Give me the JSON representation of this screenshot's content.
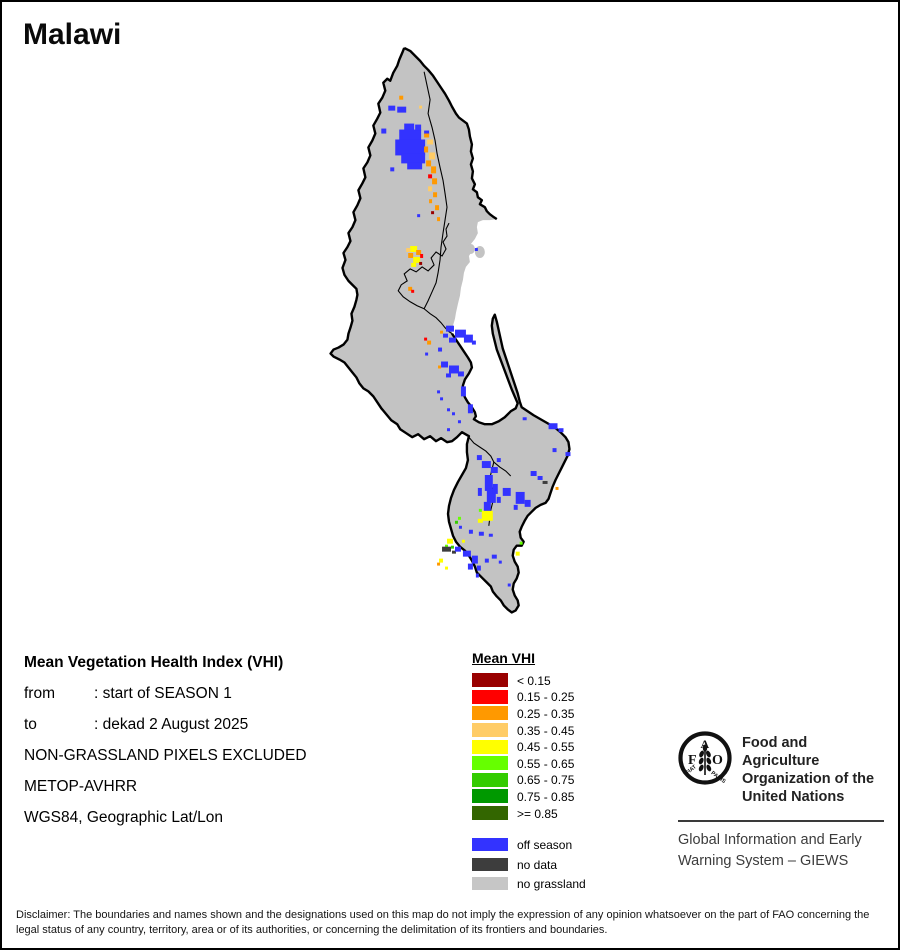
{
  "title": "Malawi",
  "info": {
    "heading": "Mean Vegetation Health Index (VHI)",
    "rows": [
      {
        "label": "from",
        "value": ": start of SEASON 1"
      },
      {
        "label": "to",
        "value": ": dekad 2 August 2025"
      },
      {
        "label": "",
        "value": "NON-GRASSLAND PIXELS EXCLUDED"
      },
      {
        "label": "",
        "value": "METOP-AVHRR"
      },
      {
        "label": "",
        "value": "WGS84, Geographic Lat/Lon"
      }
    ]
  },
  "legend": {
    "title": "Mean VHI",
    "classes": [
      {
        "color": "#990000",
        "label": "< 0.15"
      },
      {
        "color": "#FF0000",
        "label": "0.15 - 0.25"
      },
      {
        "color": "#FF9900",
        "label": "0.25 - 0.35"
      },
      {
        "color": "#FFCC66",
        "label": "0.35 - 0.45"
      },
      {
        "color": "#FFFF00",
        "label": "0.45 - 0.55"
      },
      {
        "color": "#66FF00",
        "label": "0.55 - 0.65"
      },
      {
        "color": "#33CC00",
        "label": "0.65 - 0.75"
      },
      {
        "color": "#009900",
        "label": "0.75 - 0.85"
      },
      {
        "color": "#336600",
        "label": ">= 0.85"
      }
    ],
    "extra": [
      {
        "color": "#3333FF",
        "label": "off season"
      },
      {
        "color": "#3D3D3D",
        "label": "no data"
      },
      {
        "color": "#C6C6C6",
        "label": "no grassland"
      }
    ]
  },
  "footer": {
    "fao_letters": {
      "f": "F",
      "a": "A",
      "o": "O"
    },
    "fao_motto": {
      "left": "FIAT",
      "right": "PANIS"
    },
    "org_lines": [
      "Food and Agriculture",
      "Organization of the",
      "United Nations"
    ],
    "giews_lines": [
      "Global Information and Early",
      "Warning System – GIEWS"
    ]
  },
  "disclaimer": "Disclaimer: The boundaries and names shown and the designations used on this map do not imply the expression of any opinion whatsoever on the part of FAO concerning the legal status of any country, territory, area or of its authorities, or concerning the delimitation of its frontiers and boundaries.",
  "map": {
    "land_color": "#C3C3C3",
    "border_color": "#000000",
    "palette": {
      "b": "#3333FF",
      "o": "#FF9900",
      "lo": "#FFCC66",
      "y": "#FFFF00",
      "r": "#FF0000",
      "dr": "#990000",
      "g": "#33CC00",
      "lg": "#66FF00",
      "nd": "#3D3D3D"
    },
    "patches": [
      [
        "b",
        404,
        122,
        10,
        8
      ],
      [
        "b",
        399,
        128,
        22,
        12
      ],
      [
        "b",
        395,
        138,
        30,
        16
      ],
      [
        "b",
        401,
        152,
        24,
        10
      ],
      [
        "b",
        407,
        161,
        15,
        7
      ],
      [
        "b",
        415,
        123,
        6,
        6
      ],
      [
        "b",
        424,
        129,
        5,
        4
      ],
      [
        "b",
        388,
        104,
        7,
        5
      ],
      [
        "b",
        397,
        105,
        9,
        6
      ],
      [
        "b",
        381,
        127,
        5,
        5
      ],
      [
        "b",
        390,
        166,
        4,
        4
      ],
      [
        "b",
        417,
        213,
        3,
        3
      ],
      [
        "o",
        424,
        132,
        5,
        4
      ],
      [
        "lo",
        427,
        138,
        6,
        5
      ],
      [
        "o",
        424,
        145,
        4,
        6
      ],
      [
        "lo",
        429,
        151,
        6,
        7
      ],
      [
        "o",
        426,
        159,
        5,
        6
      ],
      [
        "o",
        431,
        165,
        5,
        7
      ],
      [
        "r",
        428,
        173,
        4,
        4
      ],
      [
        "o",
        432,
        177,
        5,
        6
      ],
      [
        "lo",
        428,
        185,
        4,
        5
      ],
      [
        "o",
        433,
        191,
        4,
        5
      ],
      [
        "o",
        429,
        198,
        3,
        4
      ],
      [
        "o",
        435,
        204,
        4,
        5
      ],
      [
        "dr",
        431,
        210,
        3,
        3
      ],
      [
        "o",
        437,
        216,
        3,
        4
      ],
      [
        "o",
        399,
        94,
        4,
        4
      ],
      [
        "lo",
        419,
        104,
        3,
        3
      ],
      [
        "y",
        410,
        245,
        7,
        6
      ],
      [
        "o",
        416,
        249,
        5,
        5
      ],
      [
        "o",
        408,
        252,
        5,
        5
      ],
      [
        "y",
        413,
        256,
        7,
        6
      ],
      [
        "r",
        420,
        253,
        3,
        4
      ],
      [
        "y",
        411,
        262,
        5,
        4
      ],
      [
        "dr",
        419,
        261,
        3,
        3
      ],
      [
        "lo",
        406,
        247,
        4,
        4
      ],
      [
        "o",
        408,
        286,
        4,
        4
      ],
      [
        "r",
        411,
        289,
        3,
        3
      ],
      [
        "r",
        424,
        337,
        3,
        3
      ],
      [
        "o",
        427,
        340,
        4,
        4
      ],
      [
        "b",
        475,
        247,
        3,
        3
      ],
      [
        "b",
        446,
        325,
        8,
        6
      ],
      [
        "b",
        455,
        329,
        11,
        8
      ],
      [
        "b",
        449,
        337,
        7,
        5
      ],
      [
        "b",
        443,
        333,
        5,
        4
      ],
      [
        "b",
        464,
        334,
        9,
        8
      ],
      [
        "b",
        472,
        340,
        4,
        4
      ],
      [
        "o",
        440,
        330,
        3,
        3
      ],
      [
        "b",
        441,
        361,
        7,
        6
      ],
      [
        "b",
        449,
        365,
        10,
        8
      ],
      [
        "b",
        458,
        371,
        6,
        5
      ],
      [
        "b",
        446,
        373,
        5,
        4
      ],
      [
        "o",
        438,
        365,
        3,
        3
      ],
      [
        "b",
        461,
        386,
        5,
        10
      ],
      [
        "b",
        468,
        404,
        5,
        9
      ],
      [
        "b",
        437,
        390,
        3,
        3
      ],
      [
        "b",
        440,
        397,
        3,
        3
      ],
      [
        "b",
        447,
        408,
        3,
        3
      ],
      [
        "b",
        425,
        352,
        3,
        3
      ],
      [
        "b",
        438,
        347,
        4,
        4
      ],
      [
        "b",
        452,
        412,
        3,
        3
      ],
      [
        "b",
        458,
        420,
        3,
        3
      ],
      [
        "b",
        447,
        428,
        3,
        3
      ],
      [
        "b",
        482,
        461,
        9,
        7
      ],
      [
        "b",
        491,
        467,
        7,
        6
      ],
      [
        "b",
        477,
        455,
        5,
        5
      ],
      [
        "b",
        497,
        458,
        4,
        4
      ],
      [
        "b",
        531,
        471,
        6,
        5
      ],
      [
        "b",
        538,
        476,
        5,
        4
      ],
      [
        "b",
        549,
        423,
        9,
        6
      ],
      [
        "b",
        559,
        428,
        5,
        4
      ],
      [
        "b",
        566,
        452,
        5,
        4
      ],
      [
        "b",
        553,
        448,
        4,
        4
      ],
      [
        "b",
        523,
        417,
        4,
        3
      ],
      [
        "o",
        556,
        487,
        3,
        3
      ],
      [
        "nd",
        543,
        481,
        5,
        3
      ],
      [
        "b",
        485,
        475,
        8,
        16
      ],
      [
        "b",
        487,
        489,
        9,
        14
      ],
      [
        "b",
        484,
        502,
        7,
        10
      ],
      [
        "b",
        493,
        484,
        5,
        10
      ],
      [
        "b",
        478,
        488,
        4,
        8
      ],
      [
        "b",
        497,
        497,
        4,
        6
      ],
      [
        "b",
        503,
        488,
        8,
        8
      ],
      [
        "b",
        516,
        492,
        9,
        12
      ],
      [
        "b",
        525,
        500,
        6,
        7
      ],
      [
        "b",
        514,
        505,
        4,
        5
      ],
      [
        "y",
        482,
        511,
        11,
        10
      ],
      [
        "y",
        478,
        519,
        5,
        4
      ],
      [
        "lg",
        479,
        509,
        3,
        3
      ],
      [
        "g",
        455,
        521,
        3,
        3
      ],
      [
        "lg",
        458,
        517,
        3,
        3
      ],
      [
        "y",
        447,
        539,
        6,
        5
      ],
      [
        "lg",
        445,
        545,
        3,
        3
      ],
      [
        "g",
        451,
        546,
        3,
        3
      ],
      [
        "y",
        462,
        540,
        3,
        3
      ],
      [
        "lg",
        520,
        542,
        3,
        3
      ],
      [
        "y",
        516,
        552,
        4,
        4
      ],
      [
        "y",
        439,
        559,
        4,
        4
      ],
      [
        "o",
        437,
        563,
        3,
        3
      ],
      [
        "y",
        445,
        567,
        3,
        3
      ],
      [
        "nd",
        442,
        547,
        9,
        5
      ],
      [
        "nd",
        452,
        551,
        4,
        3
      ],
      [
        "b",
        455,
        547,
        6,
        5
      ],
      [
        "b",
        463,
        551,
        8,
        6
      ],
      [
        "b",
        472,
        556,
        6,
        8
      ],
      [
        "b",
        468,
        564,
        5,
        6
      ],
      [
        "b",
        477,
        566,
        4,
        5
      ],
      [
        "b",
        485,
        559,
        4,
        4
      ],
      [
        "b",
        492,
        555,
        5,
        4
      ],
      [
        "b",
        499,
        561,
        3,
        3
      ],
      [
        "b",
        469,
        530,
        4,
        4
      ],
      [
        "b",
        479,
        532,
        5,
        4
      ],
      [
        "b",
        489,
        534,
        4,
        3
      ],
      [
        "b",
        459,
        526,
        3,
        3
      ],
      [
        "b",
        508,
        584,
        3,
        3
      ],
      [
        "b",
        476,
        574,
        3,
        4
      ]
    ]
  }
}
